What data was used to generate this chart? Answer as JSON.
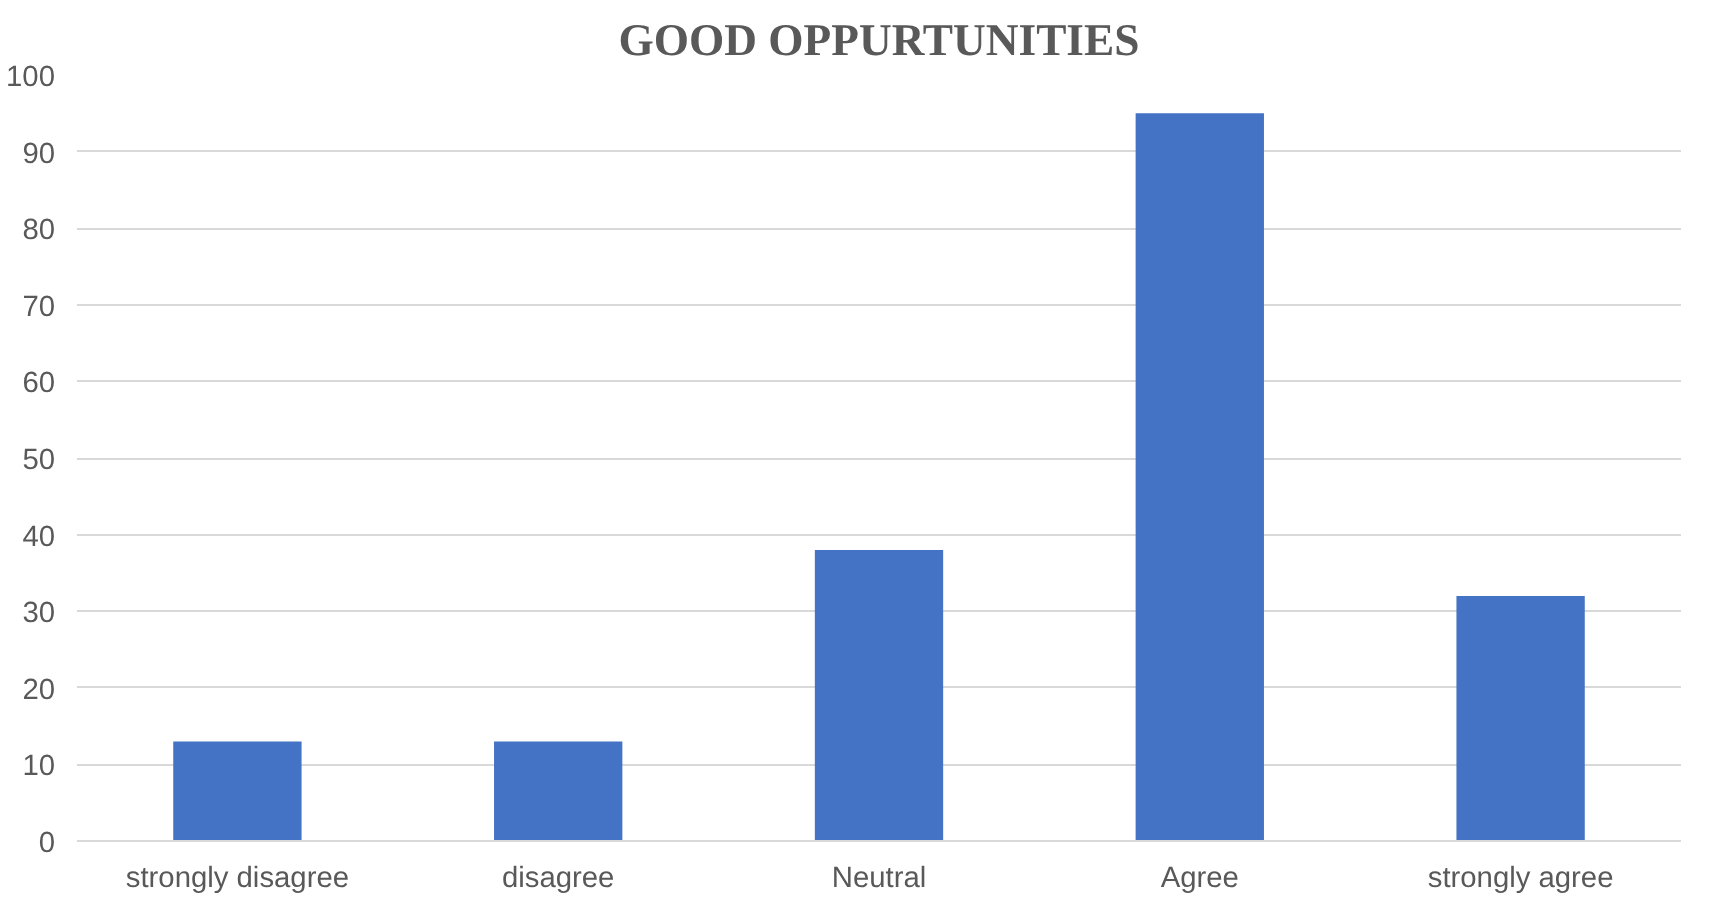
{
  "chart_data": {
    "type": "bar",
    "title": "GOOD OPPURTUNITIES",
    "categories": [
      "strongly disagree",
      "disagree",
      "Neutral",
      "Agree",
      "strongly agree"
    ],
    "values": [
      13,
      13,
      38,
      95,
      32
    ],
    "color": "#4472c4",
    "ylim": [
      0,
      100
    ],
    "yticks": [
      0,
      10,
      20,
      30,
      40,
      50,
      60,
      70,
      80,
      90,
      100
    ],
    "grid": "y"
  }
}
